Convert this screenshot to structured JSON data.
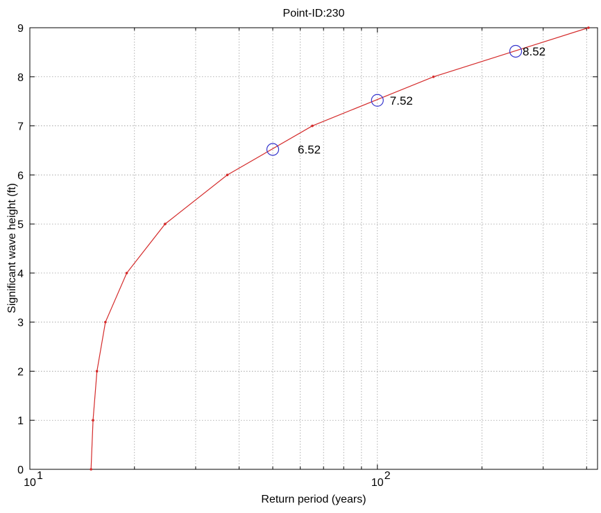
{
  "chart_data": {
    "type": "line",
    "title": "Point-ID:230",
    "xlabel": "Return period (years)",
    "ylabel": "Significant wave height (ft)",
    "xscale": "log",
    "xlim": [
      10,
      430
    ],
    "ylim": [
      0,
      9
    ],
    "grid": true,
    "xticks": [
      {
        "value": 10,
        "base": "10",
        "exp": "1"
      },
      {
        "value": 100,
        "base": "10",
        "exp": "2"
      }
    ],
    "yticks": [
      "0",
      "1",
      "2",
      "3",
      "4",
      "5",
      "6",
      "7",
      "8",
      "9"
    ],
    "series": [
      {
        "color": "#d42a2a",
        "x": [
          15.0,
          15.2,
          15.6,
          16.5,
          19.0,
          24.5,
          37.0,
          65.0,
          145.0,
          405.0
        ],
        "y": [
          0,
          1,
          2,
          3,
          4,
          5,
          6,
          7,
          8,
          9
        ]
      }
    ],
    "annotations": [
      {
        "x": 50,
        "y": 6.52,
        "label": "6.52",
        "marker": "circle",
        "color": "#3333cc"
      },
      {
        "x": 100,
        "y": 7.52,
        "label": "7.52",
        "marker": "circle",
        "color": "#3333cc"
      },
      {
        "x": 250,
        "y": 8.52,
        "label": "8.52",
        "marker": "circle",
        "color": "#3333cc"
      }
    ]
  }
}
